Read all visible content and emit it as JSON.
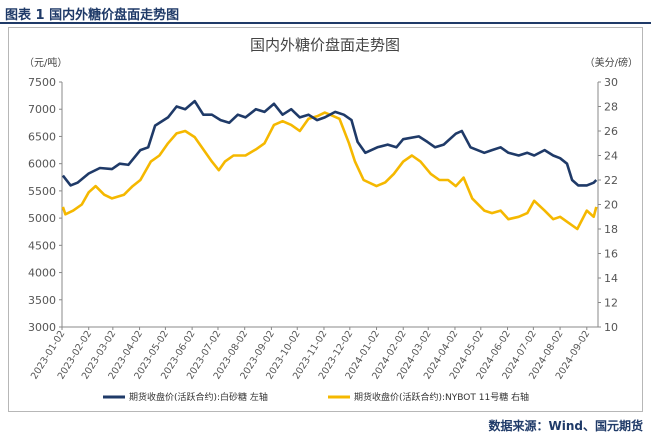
{
  "header": {
    "figure_label": "图表 1 国内外糖价盘面走势图"
  },
  "footer": {
    "source": "数据来源：Wind、国元期货"
  },
  "colors": {
    "header_blue": "#1f3a68",
    "series_white_sugar": "#1f3a68",
    "series_nybot": "#f5b800"
  },
  "chart_data": {
    "type": "line",
    "title": "国内外糖价盘面走势图",
    "y_left_unit": "（元/吨）",
    "y_right_unit": "（美分/磅）",
    "y_left_range": [
      3000,
      7500
    ],
    "y_right_range": [
      10,
      30
    ],
    "y_left_ticks": [
      "3000",
      "3500",
      "4000",
      "4500",
      "5000",
      "5500",
      "6000",
      "6500",
      "7000",
      "7500"
    ],
    "y_right_ticks": [
      "10",
      "12",
      "14",
      "16",
      "18",
      "20",
      "22",
      "24",
      "26",
      "28",
      "30"
    ],
    "x_ticks": [
      "2023-01-02",
      "2023-02-02",
      "2023-03-02",
      "2023-04-02",
      "2023-05-02",
      "2023-06-02",
      "2023-07-02",
      "2023-08-02",
      "2023-09-02",
      "2023-10-02",
      "2023-11-02",
      "2023-12-02",
      "2024-01-02",
      "2024-02-02",
      "2024-03-02",
      "2024-04-02",
      "2024-05-02",
      "2024-06-02",
      "2024-07-02",
      "2024-08-02",
      "2024-09-02"
    ],
    "grid": false,
    "legend_position": "bottom",
    "series": [
      {
        "name": "期货收盘价(活跃合约):白砂糖  左轴",
        "axis": "left",
        "points": [
          [
            "2023-01-03",
            5780
          ],
          [
            "2023-01-12",
            5600
          ],
          [
            "2023-01-20",
            5650
          ],
          [
            "2023-02-02",
            5820
          ],
          [
            "2023-02-15",
            5920
          ],
          [
            "2023-03-01",
            5900
          ],
          [
            "2023-03-10",
            6000
          ],
          [
            "2023-03-20",
            5980
          ],
          [
            "2023-04-03",
            6250
          ],
          [
            "2023-04-12",
            6300
          ],
          [
            "2023-04-20",
            6700
          ],
          [
            "2023-05-05",
            6850
          ],
          [
            "2023-05-15",
            7050
          ],
          [
            "2023-05-25",
            7000
          ],
          [
            "2023-06-05",
            7150
          ],
          [
            "2023-06-15",
            6900
          ],
          [
            "2023-06-25",
            6900
          ],
          [
            "2023-07-05",
            6800
          ],
          [
            "2023-07-15",
            6750
          ],
          [
            "2023-07-25",
            6900
          ],
          [
            "2023-08-03",
            6850
          ],
          [
            "2023-08-15",
            7000
          ],
          [
            "2023-08-25",
            6950
          ],
          [
            "2023-09-05",
            7100
          ],
          [
            "2023-09-15",
            6900
          ],
          [
            "2023-09-25",
            7000
          ],
          [
            "2023-10-05",
            6850
          ],
          [
            "2023-10-15",
            6900
          ],
          [
            "2023-10-25",
            6800
          ],
          [
            "2023-11-03",
            6850
          ],
          [
            "2023-11-15",
            6950
          ],
          [
            "2023-11-25",
            6900
          ],
          [
            "2023-12-04",
            6800
          ],
          [
            "2023-12-11",
            6400
          ],
          [
            "2023-12-20",
            6200
          ],
          [
            "2024-01-03",
            6300
          ],
          [
            "2024-01-15",
            6350
          ],
          [
            "2024-01-25",
            6300
          ],
          [
            "2024-02-02",
            6450
          ],
          [
            "2024-02-20",
            6500
          ],
          [
            "2024-03-01",
            6400
          ],
          [
            "2024-03-10",
            6300
          ],
          [
            "2024-03-20",
            6350
          ],
          [
            "2024-04-03",
            6550
          ],
          [
            "2024-04-10",
            6600
          ],
          [
            "2024-04-20",
            6300
          ],
          [
            "2024-05-06",
            6200
          ],
          [
            "2024-05-15",
            6250
          ],
          [
            "2024-05-25",
            6300
          ],
          [
            "2024-06-03",
            6200
          ],
          [
            "2024-06-15",
            6150
          ],
          [
            "2024-06-25",
            6200
          ],
          [
            "2024-07-03",
            6150
          ],
          [
            "2024-07-15",
            6250
          ],
          [
            "2024-07-25",
            6150
          ],
          [
            "2024-08-02",
            6100
          ],
          [
            "2024-08-10",
            6000
          ],
          [
            "2024-08-16",
            5700
          ],
          [
            "2024-08-23",
            5600
          ],
          [
            "2024-09-02",
            5600
          ],
          [
            "2024-09-10",
            5650
          ],
          [
            "2024-09-13",
            5700
          ]
        ]
      },
      {
        "name": "期货收盘价(活跃合约):NYBOT 11号糖  右轴",
        "axis": "right",
        "points": [
          [
            "2023-01-03",
            19.8
          ],
          [
            "2023-01-06",
            19.2
          ],
          [
            "2023-01-15",
            19.5
          ],
          [
            "2023-01-25",
            20.0
          ],
          [
            "2023-02-02",
            21.0
          ],
          [
            "2023-02-10",
            21.5
          ],
          [
            "2023-02-20",
            20.8
          ],
          [
            "2023-03-01",
            20.5
          ],
          [
            "2023-03-15",
            20.8
          ],
          [
            "2023-03-25",
            21.5
          ],
          [
            "2023-04-03",
            22.0
          ],
          [
            "2023-04-15",
            23.5
          ],
          [
            "2023-04-25",
            24.0
          ],
          [
            "2023-05-05",
            25.0
          ],
          [
            "2023-05-15",
            25.8
          ],
          [
            "2023-05-25",
            26.0
          ],
          [
            "2023-06-05",
            25.5
          ],
          [
            "2023-06-15",
            24.5
          ],
          [
            "2023-06-25",
            23.5
          ],
          [
            "2023-07-03",
            22.8
          ],
          [
            "2023-07-10",
            23.5
          ],
          [
            "2023-07-20",
            24.0
          ],
          [
            "2023-08-03",
            24.0
          ],
          [
            "2023-08-15",
            24.5
          ],
          [
            "2023-08-25",
            25.0
          ],
          [
            "2023-09-05",
            26.5
          ],
          [
            "2023-09-15",
            26.8
          ],
          [
            "2023-09-25",
            26.5
          ],
          [
            "2023-10-05",
            26.0
          ],
          [
            "2023-10-15",
            27.0
          ],
          [
            "2023-10-25",
            27.2
          ],
          [
            "2023-11-03",
            27.5
          ],
          [
            "2023-11-10",
            27.3
          ],
          [
            "2023-11-20",
            27.0
          ],
          [
            "2023-12-01",
            25.0
          ],
          [
            "2023-12-08",
            23.5
          ],
          [
            "2023-12-18",
            22.0
          ],
          [
            "2024-01-02",
            21.5
          ],
          [
            "2024-01-12",
            21.8
          ],
          [
            "2024-01-22",
            22.5
          ],
          [
            "2024-02-02",
            23.5
          ],
          [
            "2024-02-12",
            24.0
          ],
          [
            "2024-02-22",
            23.5
          ],
          [
            "2024-03-05",
            22.5
          ],
          [
            "2024-03-15",
            22.0
          ],
          [
            "2024-03-25",
            22.0
          ],
          [
            "2024-04-03",
            21.5
          ],
          [
            "2024-04-12",
            22.2
          ],
          [
            "2024-04-22",
            20.5
          ],
          [
            "2024-05-06",
            19.5
          ],
          [
            "2024-05-15",
            19.3
          ],
          [
            "2024-05-25",
            19.5
          ],
          [
            "2024-06-03",
            18.8
          ],
          [
            "2024-06-15",
            19.0
          ],
          [
            "2024-06-25",
            19.3
          ],
          [
            "2024-07-03",
            20.3
          ],
          [
            "2024-07-15",
            19.5
          ],
          [
            "2024-07-25",
            18.8
          ],
          [
            "2024-08-02",
            19.0
          ],
          [
            "2024-08-12",
            18.5
          ],
          [
            "2024-08-22",
            18.0
          ],
          [
            "2024-09-02",
            19.5
          ],
          [
            "2024-09-10",
            19.0
          ],
          [
            "2024-09-13",
            19.8
          ]
        ]
      }
    ]
  }
}
